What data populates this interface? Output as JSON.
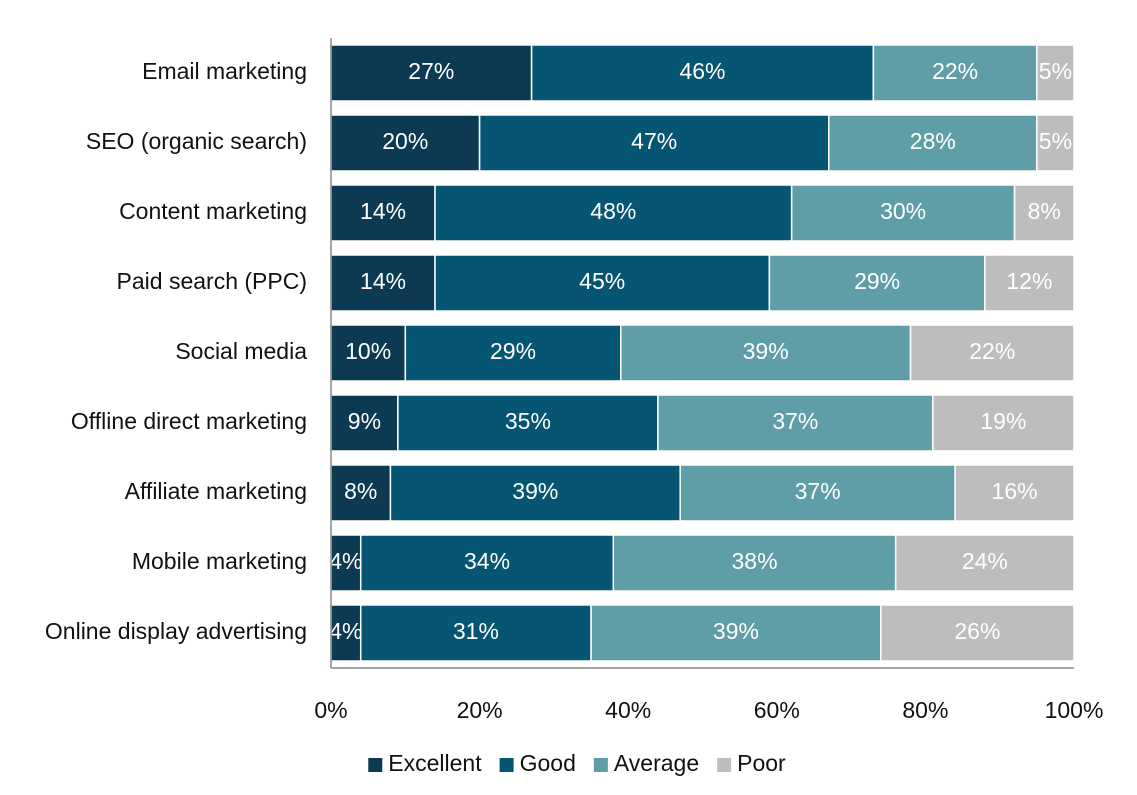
{
  "chart_data": {
    "type": "bar",
    "orientation": "horizontal",
    "stacked": true,
    "categories": [
      "Email marketing",
      "SEO (organic search)",
      "Content marketing",
      "Paid search (PPC)",
      "Social media",
      "Offline direct marketing",
      "Affiliate marketing",
      "Mobile marketing",
      "Online display advertising"
    ],
    "series": [
      {
        "name": "Excellent",
        "color": "#0b3a52",
        "values": [
          27,
          20,
          14,
          14,
          10,
          9,
          8,
          4,
          4
        ]
      },
      {
        "name": "Good",
        "color": "#065573",
        "values": [
          46,
          47,
          48,
          45,
          29,
          35,
          39,
          34,
          31
        ]
      },
      {
        "name": "Average",
        "color": "#5f9ea6",
        "values": [
          22,
          28,
          30,
          29,
          39,
          37,
          37,
          38,
          39
        ]
      },
      {
        "name": "Poor",
        "color": "#bdbdbd",
        "values": [
          5,
          5,
          8,
          12,
          22,
          19,
          16,
          24,
          26
        ]
      }
    ],
    "xlim": [
      0,
      100
    ],
    "xticks": [
      "0%",
      "20%",
      "40%",
      "60%",
      "80%",
      "100%"
    ],
    "value_suffix": "%",
    "grid": false,
    "legend_position": "bottom"
  }
}
